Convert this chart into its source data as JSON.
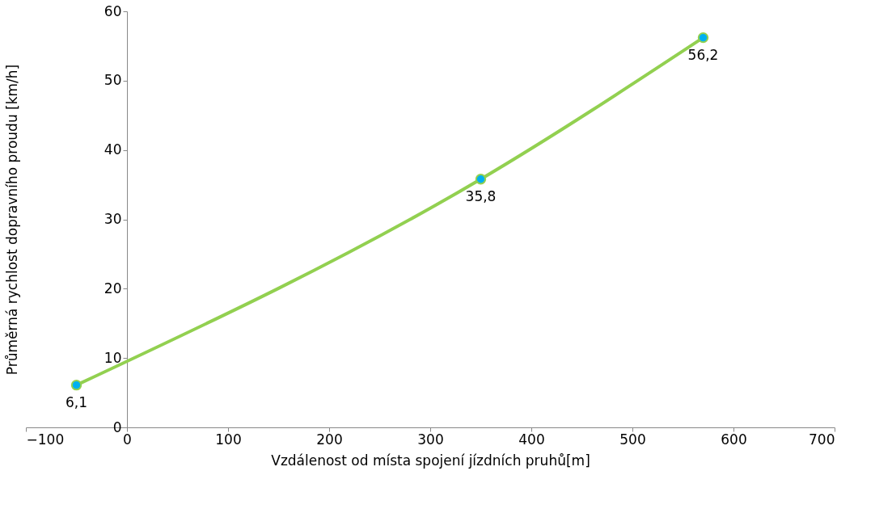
{
  "chart_data": {
    "type": "line",
    "xlabel": "Vzdálenost od místa spojení jízdních pruhů[m]",
    "ylabel": "Průměrná rychlost dopravního proudu [km/h]",
    "x": [
      -50,
      350,
      570
    ],
    "series": [
      {
        "color": "#92d050",
        "values": [
          6.1,
          35.8,
          56.2
        ],
        "value_labels": [
          "6,1",
          "35,8",
          "56,2"
        ]
      }
    ],
    "xlim": [
      -100,
      700
    ],
    "ylim": [
      0,
      60
    ],
    "xticks": [
      -100,
      0,
      100,
      200,
      300,
      400,
      500,
      600,
      700
    ],
    "yticks": [
      0,
      10,
      20,
      30,
      40,
      50,
      60
    ],
    "marker": "circle",
    "line_style": "solid",
    "grid": false
  }
}
